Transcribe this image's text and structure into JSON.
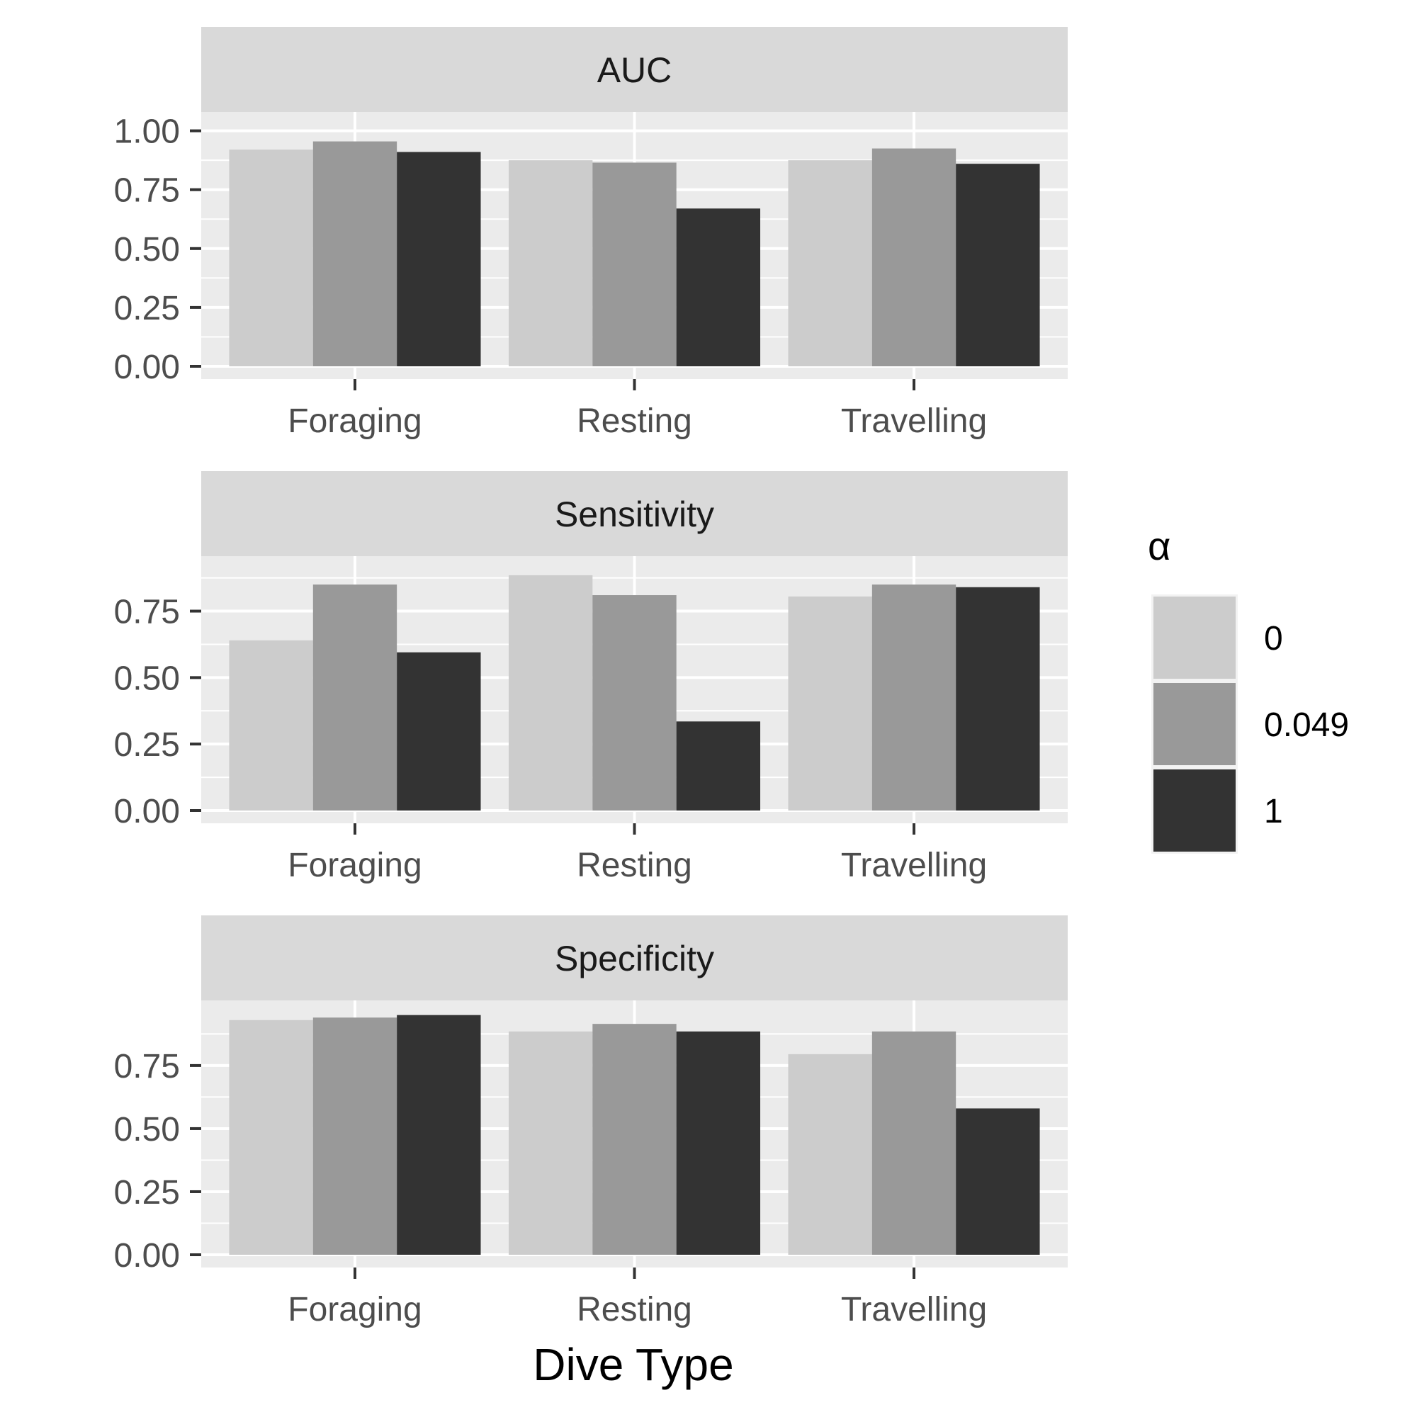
{
  "chart_data": {
    "type": "bar",
    "layout": "faceted-vertical",
    "xlabel": "Dive Type",
    "categories": [
      "Foraging",
      "Resting",
      "Travelling"
    ],
    "legend": {
      "title": "α",
      "placement": "right",
      "entries": [
        {
          "label": "0",
          "color": "#cccccc"
        },
        {
          "label": "0.049",
          "color": "#999999"
        },
        {
          "label": "1",
          "color": "#333333"
        }
      ]
    },
    "panel_background": "#ebebeb",
    "strip_background": "#d9d9d9",
    "grid": true,
    "facets": [
      {
        "title": "AUC",
        "ylim": [
          0,
          1.05
        ],
        "yticks": [
          0,
          0.25,
          0.5,
          0.75,
          1.0
        ],
        "ytick_labels": [
          "0.00",
          "0.25",
          "0.50",
          "0.75",
          "1.00"
        ],
        "series": [
          {
            "name": "0",
            "values": [
              0.92,
              0.875,
              0.875
            ]
          },
          {
            "name": "0.049",
            "values": [
              0.955,
              0.865,
              0.925
            ]
          },
          {
            "name": "1",
            "values": [
              0.91,
              0.67,
              0.86
            ]
          }
        ]
      },
      {
        "title": "Sensitivity",
        "ylim": [
          0,
          0.93
        ],
        "yticks": [
          0,
          0.25,
          0.5,
          0.75
        ],
        "ytick_labels": [
          "0.00",
          "0.25",
          "0.50",
          "0.75"
        ],
        "series": [
          {
            "name": "0",
            "values": [
              0.64,
              0.885,
              0.805
            ]
          },
          {
            "name": "0.049",
            "values": [
              0.85,
              0.81,
              0.85
            ]
          },
          {
            "name": "1",
            "values": [
              0.595,
              0.335,
              0.84
            ]
          }
        ]
      },
      {
        "title": "Specificity",
        "ylim": [
          0,
          0.98
        ],
        "yticks": [
          0,
          0.25,
          0.5,
          0.75
        ],
        "ytick_labels": [
          "0.00",
          "0.25",
          "0.50",
          "0.75"
        ],
        "series": [
          {
            "name": "0",
            "values": [
              0.93,
              0.885,
              0.795
            ]
          },
          {
            "name": "0.049",
            "values": [
              0.94,
              0.915,
              0.885
            ]
          },
          {
            "name": "1",
            "values": [
              0.95,
              0.885,
              0.58
            ]
          }
        ]
      }
    ]
  }
}
